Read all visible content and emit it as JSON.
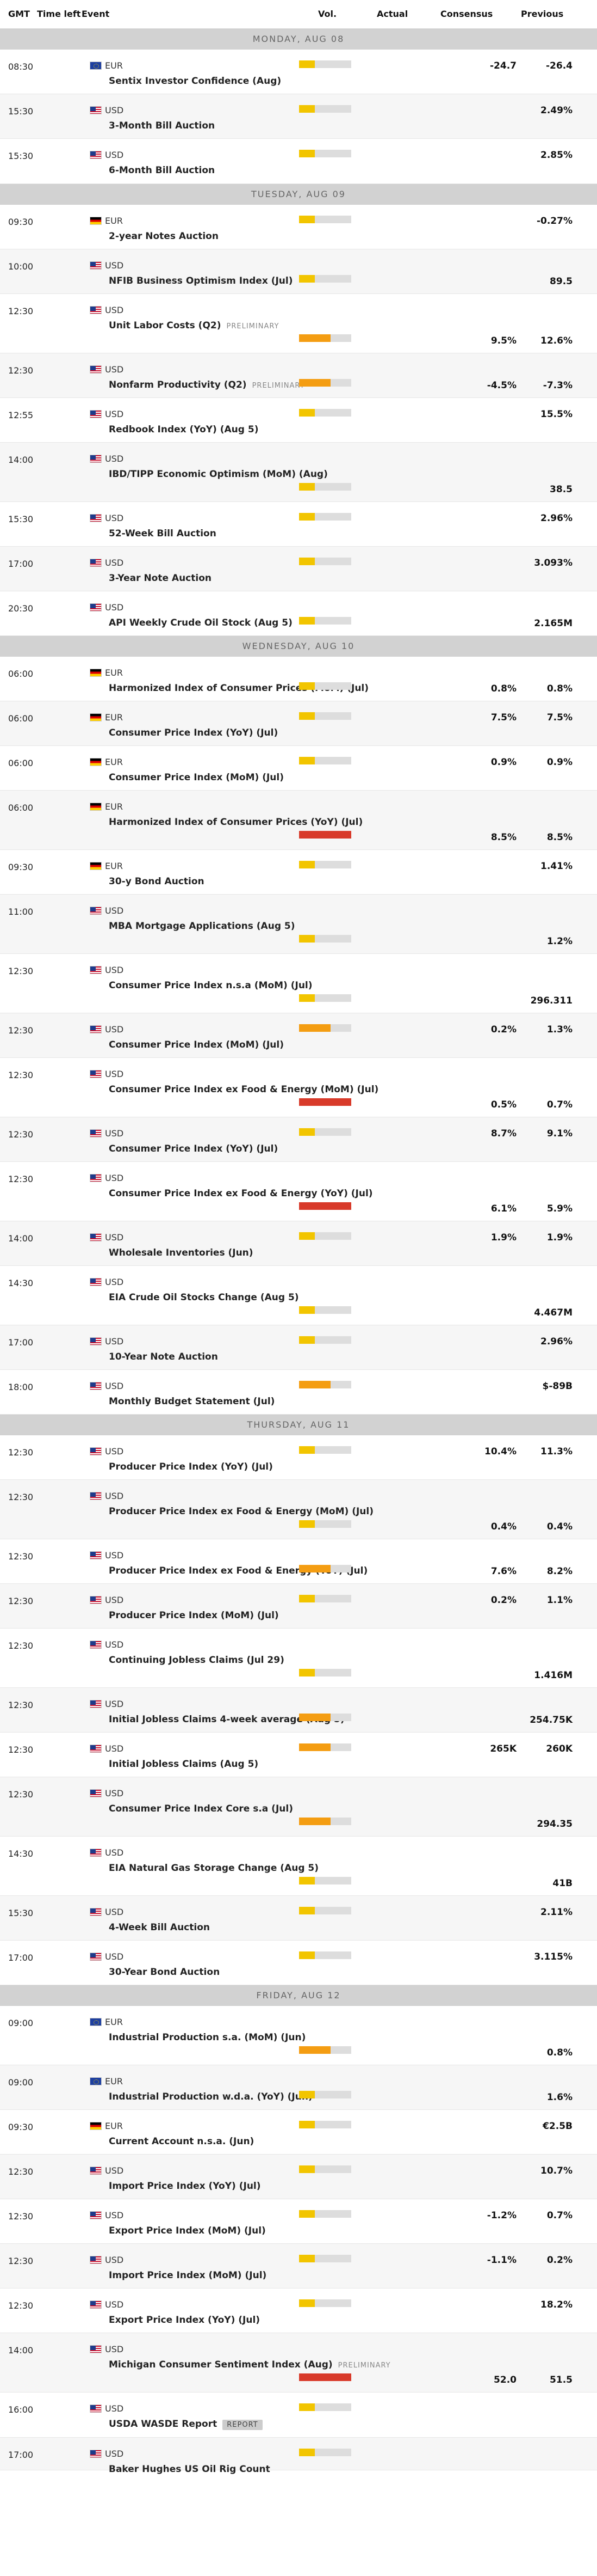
{
  "header": {
    "gmt": "GMT",
    "time_left": "Time left",
    "event": "Event",
    "vol": "Vol.",
    "actual": "Actual",
    "consensus": "Consensus",
    "previous": "Previous"
  },
  "sections": [
    {
      "day": "MONDAY, AUG 08",
      "rows": [
        {
          "time": "08:30",
          "currency": "EUR",
          "flag": "eur",
          "event": "Sentix Investor Confidence (Aug)",
          "vol": "low",
          "consensus": "-24.7",
          "previous": "-26.4",
          "h": 82,
          "vpos": "top"
        },
        {
          "time": "15:30",
          "currency": "USD",
          "flag": "usd",
          "event": "3-Month Bill Auction",
          "vol": "low",
          "consensus": "",
          "previous": "2.49%",
          "h": 82,
          "vpos": "top"
        },
        {
          "time": "15:30",
          "currency": "USD",
          "flag": "usd",
          "event": "6-Month Bill Auction",
          "vol": "low",
          "consensus": "",
          "previous": "2.85%",
          "h": 83,
          "vpos": "top"
        }
      ]
    },
    {
      "day": "TUESDAY, AUG 09",
      "rows": [
        {
          "time": "09:30",
          "currency": "EUR",
          "flag": "de",
          "event": "2-year Notes Auction",
          "vol": "low",
          "consensus": "",
          "previous": "-0.27%",
          "h": 82,
          "vpos": "top"
        },
        {
          "time": "10:00",
          "currency": "USD",
          "flag": "usd",
          "event": "NFIB Business Optimism Index (Jul)",
          "vol": "low",
          "consensus": "",
          "previous": "89.5",
          "h": 82,
          "vpos": "bottom"
        },
        {
          "time": "12:30",
          "currency": "USD",
          "flag": "usd",
          "event": "Unit Labor Costs (Q2)",
          "badge": "PRELIMINARY",
          "vol": "med",
          "consensus": "9.5%",
          "previous": "12.6%",
          "h": 109,
          "vpos": "bottom"
        },
        {
          "time": "12:30",
          "currency": "USD",
          "flag": "usd",
          "event": "Nonfarm Productivity (Q2)",
          "badge": "PRELIMINARY",
          "vol": "med",
          "consensus": "-4.5%",
          "previous": "-7.3%",
          "h": 82,
          "vpos": "bottom"
        },
        {
          "time": "12:55",
          "currency": "USD",
          "flag": "usd",
          "event": "Redbook Index (YoY) (Aug 5)",
          "vol": "low",
          "consensus": "",
          "previous": "15.5%",
          "h": 82,
          "vpos": "top"
        },
        {
          "time": "14:00",
          "currency": "USD",
          "flag": "usd",
          "event": "IBD/TIPP Economic Optimism (MoM) (Aug)",
          "vol": "low",
          "consensus": "",
          "previous": "38.5",
          "h": 109,
          "vpos": "bottom"
        },
        {
          "time": "15:30",
          "currency": "USD",
          "flag": "usd",
          "event": "52-Week Bill Auction",
          "vol": "low",
          "consensus": "",
          "previous": "2.96%",
          "h": 82,
          "vpos": "top"
        },
        {
          "time": "17:00",
          "currency": "USD",
          "flag": "usd",
          "event": "3-Year Note Auction",
          "vol": "low",
          "consensus": "",
          "previous": "3.093%",
          "h": 82,
          "vpos": "top"
        },
        {
          "time": "20:30",
          "currency": "USD",
          "flag": "usd",
          "event": "API Weekly Crude Oil Stock (Aug 5)",
          "vol": "low",
          "consensus": "",
          "previous": "2.165M",
          "h": 82,
          "vpos": "bottom"
        }
      ]
    },
    {
      "day": "WEDNESDAY, AUG 10",
      "rows": [
        {
          "time": "06:00",
          "currency": "EUR",
          "flag": "de",
          "event": "Harmonized Index of Consumer Prices (MoM) (Jul)",
          "vol": "low",
          "consensus": "0.8%",
          "previous": "0.8%",
          "h": 82,
          "vpos": "bottom"
        },
        {
          "time": "06:00",
          "currency": "EUR",
          "flag": "de",
          "event": "Consumer Price Index (YoY) (Jul)",
          "vol": "low",
          "consensus": "7.5%",
          "previous": "7.5%",
          "h": 82,
          "vpos": "top"
        },
        {
          "time": "06:00",
          "currency": "EUR",
          "flag": "de",
          "event": "Consumer Price Index (MoM) (Jul)",
          "vol": "low",
          "consensus": "0.9%",
          "previous": "0.9%",
          "h": 82,
          "vpos": "top"
        },
        {
          "time": "06:00",
          "currency": "EUR",
          "flag": "de",
          "event": "Harmonized Index of Consumer Prices (YoY) (Jul)",
          "vol": "high",
          "consensus": "8.5%",
          "previous": "8.5%",
          "h": 109,
          "vpos": "bottom"
        },
        {
          "time": "09:30",
          "currency": "EUR",
          "flag": "de",
          "event": "30-y Bond Auction",
          "vol": "low",
          "consensus": "",
          "previous": "1.41%",
          "h": 82,
          "vpos": "top"
        },
        {
          "time": "11:00",
          "currency": "USD",
          "flag": "usd",
          "event": "MBA Mortgage Applications (Aug 5)",
          "vol": "low",
          "consensus": "",
          "previous": "1.2%",
          "h": 109,
          "vpos": "bottom"
        },
        {
          "time": "12:30",
          "currency": "USD",
          "flag": "usd",
          "event": "Consumer Price Index n.s.a (MoM) (Jul)",
          "vol": "low",
          "consensus": "",
          "previous": "296.311",
          "h": 109,
          "vpos": "bottom"
        },
        {
          "time": "12:30",
          "currency": "USD",
          "flag": "usd",
          "event": "Consumer Price Index (MoM) (Jul)",
          "vol": "med",
          "consensus": "0.2%",
          "previous": "1.3%",
          "h": 82,
          "vpos": "top"
        },
        {
          "time": "12:30",
          "currency": "USD",
          "flag": "usd",
          "event": "Consumer Price Index ex Food & Energy (MoM) (Jul)",
          "vol": "high",
          "consensus": "0.5%",
          "previous": "0.7%",
          "h": 109,
          "vpos": "bottom"
        },
        {
          "time": "12:30",
          "currency": "USD",
          "flag": "usd",
          "event": "Consumer Price Index (YoY) (Jul)",
          "vol": "low",
          "consensus": "8.7%",
          "previous": "9.1%",
          "h": 82,
          "vpos": "top"
        },
        {
          "time": "12:30",
          "currency": "USD",
          "flag": "usd",
          "event": "Consumer Price Index ex Food & Energy (YoY) (Jul)",
          "vol": "high",
          "consensus": "6.1%",
          "previous": "5.9%",
          "h": 109,
          "vpos": "bottom"
        },
        {
          "time": "14:00",
          "currency": "USD",
          "flag": "usd",
          "event": "Wholesale Inventories (Jun)",
          "vol": "low",
          "consensus": "1.9%",
          "previous": "1.9%",
          "h": 82,
          "vpos": "top"
        },
        {
          "time": "14:30",
          "currency": "USD",
          "flag": "usd",
          "event": "EIA Crude Oil Stocks Change (Aug 5)",
          "vol": "low",
          "consensus": "",
          "previous": "4.467M",
          "h": 109,
          "vpos": "bottom"
        },
        {
          "time": "17:00",
          "currency": "USD",
          "flag": "usd",
          "event": "10-Year Note Auction",
          "vol": "low",
          "consensus": "",
          "previous": "2.96%",
          "h": 82,
          "vpos": "top"
        },
        {
          "time": "18:00",
          "currency": "USD",
          "flag": "usd",
          "event": "Monthly Budget Statement (Jul)",
          "vol": "med",
          "consensus": "",
          "previous": "$-89B",
          "h": 82,
          "vpos": "top"
        }
      ]
    },
    {
      "day": "THURSDAY, AUG 11",
      "rows": [
        {
          "time": "12:30",
          "currency": "USD",
          "flag": "usd",
          "event": "Producer Price Index (YoY) (Jul)",
          "vol": "low",
          "consensus": "10.4%",
          "previous": "11.3%",
          "h": 82,
          "vpos": "top"
        },
        {
          "time": "12:30",
          "currency": "USD",
          "flag": "usd",
          "event": "Producer Price Index ex Food & Energy (MoM) (Jul)",
          "vol": "low",
          "consensus": "0.4%",
          "previous": "0.4%",
          "h": 109,
          "vpos": "bottom"
        },
        {
          "time": "12:30",
          "currency": "USD",
          "flag": "usd",
          "event": "Producer Price Index ex Food & Energy (YoY) (Jul)",
          "vol": "med",
          "consensus": "7.6%",
          "previous": "8.2%",
          "h": 82,
          "vpos": "bottom"
        },
        {
          "time": "12:30",
          "currency": "USD",
          "flag": "usd",
          "event": "Producer Price Index (MoM) (Jul)",
          "vol": "low",
          "consensus": "0.2%",
          "previous": "1.1%",
          "h": 82,
          "vpos": "top"
        },
        {
          "time": "12:30",
          "currency": "USD",
          "flag": "usd",
          "event": "Continuing Jobless Claims (Jul 29)",
          "vol": "low",
          "consensus": "",
          "previous": "1.416M",
          "h": 109,
          "vpos": "bottom"
        },
        {
          "time": "12:30",
          "currency": "USD",
          "flag": "usd",
          "event": "Initial Jobless Claims 4-week average (Aug 5)",
          "vol": "med",
          "consensus": "",
          "previous": "254.75K",
          "h": 82,
          "vpos": "bottom"
        },
        {
          "time": "12:30",
          "currency": "USD",
          "flag": "usd",
          "event": "Initial Jobless Claims (Aug 5)",
          "vol": "med",
          "consensus": "265K",
          "previous": "260K",
          "h": 82,
          "vpos": "top"
        },
        {
          "time": "12:30",
          "currency": "USD",
          "flag": "usd",
          "event": "Consumer Price Index Core s.a (Jul)",
          "vol": "med",
          "consensus": "",
          "previous": "294.35",
          "h": 109,
          "vpos": "bottom"
        },
        {
          "time": "14:30",
          "currency": "USD",
          "flag": "usd",
          "event": "EIA Natural Gas Storage Change (Aug 5)",
          "vol": "low",
          "consensus": "",
          "previous": "41B",
          "h": 109,
          "vpos": "bottom"
        },
        {
          "time": "15:30",
          "currency": "USD",
          "flag": "usd",
          "event": "4-Week Bill Auction",
          "vol": "low",
          "consensus": "",
          "previous": "2.11%",
          "h": 82,
          "vpos": "top"
        },
        {
          "time": "17:00",
          "currency": "USD",
          "flag": "usd",
          "event": "30-Year Bond Auction",
          "vol": "low",
          "consensus": "",
          "previous": "3.115%",
          "h": 82,
          "vpos": "top"
        }
      ]
    },
    {
      "day": "FRIDAY, AUG 12",
      "rows": [
        {
          "time": "09:00",
          "currency": "EUR",
          "flag": "eur",
          "event": "Industrial Production s.a. (MoM) (Jun)",
          "vol": "med",
          "consensus": "",
          "previous": "0.8%",
          "h": 109,
          "vpos": "bottom"
        },
        {
          "time": "09:00",
          "currency": "EUR",
          "flag": "eur",
          "event": "Industrial Production w.d.a. (YoY) (Jun)",
          "vol": "low",
          "consensus": "",
          "previous": "1.6%",
          "h": 82,
          "vpos": "bottom"
        },
        {
          "time": "09:30",
          "currency": "EUR",
          "flag": "de",
          "event": "Current Account n.s.a. (Jun)",
          "vol": "low",
          "consensus": "",
          "previous": "€2.5B",
          "h": 82,
          "vpos": "top"
        },
        {
          "time": "12:30",
          "currency": "USD",
          "flag": "usd",
          "event": "Import Price Index (YoY) (Jul)",
          "vol": "low",
          "consensus": "",
          "previous": "10.7%",
          "h": 82,
          "vpos": "top"
        },
        {
          "time": "12:30",
          "currency": "USD",
          "flag": "usd",
          "event": "Export Price Index (MoM) (Jul)",
          "vol": "low",
          "consensus": "-1.2%",
          "previous": "0.7%",
          "h": 82,
          "vpos": "top"
        },
        {
          "time": "12:30",
          "currency": "USD",
          "flag": "usd",
          "event": "Import Price Index (MoM) (Jul)",
          "vol": "low",
          "consensus": "-1.1%",
          "previous": "0.2%",
          "h": 82,
          "vpos": "top"
        },
        {
          "time": "12:30",
          "currency": "USD",
          "flag": "usd",
          "event": "Export Price Index (YoY) (Jul)",
          "vol": "low",
          "consensus": "",
          "previous": "18.2%",
          "h": 82,
          "vpos": "top"
        },
        {
          "time": "14:00",
          "currency": "USD",
          "flag": "usd",
          "event": "Michigan Consumer Sentiment Index (Aug)",
          "badge": "PRELIMINARY",
          "vol": "high",
          "consensus": "52.0",
          "previous": "51.5",
          "h": 109,
          "vpos": "bottom"
        },
        {
          "time": "16:00",
          "currency": "USD",
          "flag": "usd",
          "event": "USDA WASDE Report",
          "badge": "REPORT",
          "badge_box": true,
          "vol": "low",
          "consensus": "",
          "previous": "",
          "h": 83,
          "vpos": "top"
        },
        {
          "time": "17:00",
          "currency": "USD",
          "flag": "usd",
          "event": "Baker Hughes US Oil Rig Count",
          "vol": "low",
          "consensus": "",
          "previous": "",
          "h": 60,
          "vpos": "top"
        }
      ]
    }
  ]
}
